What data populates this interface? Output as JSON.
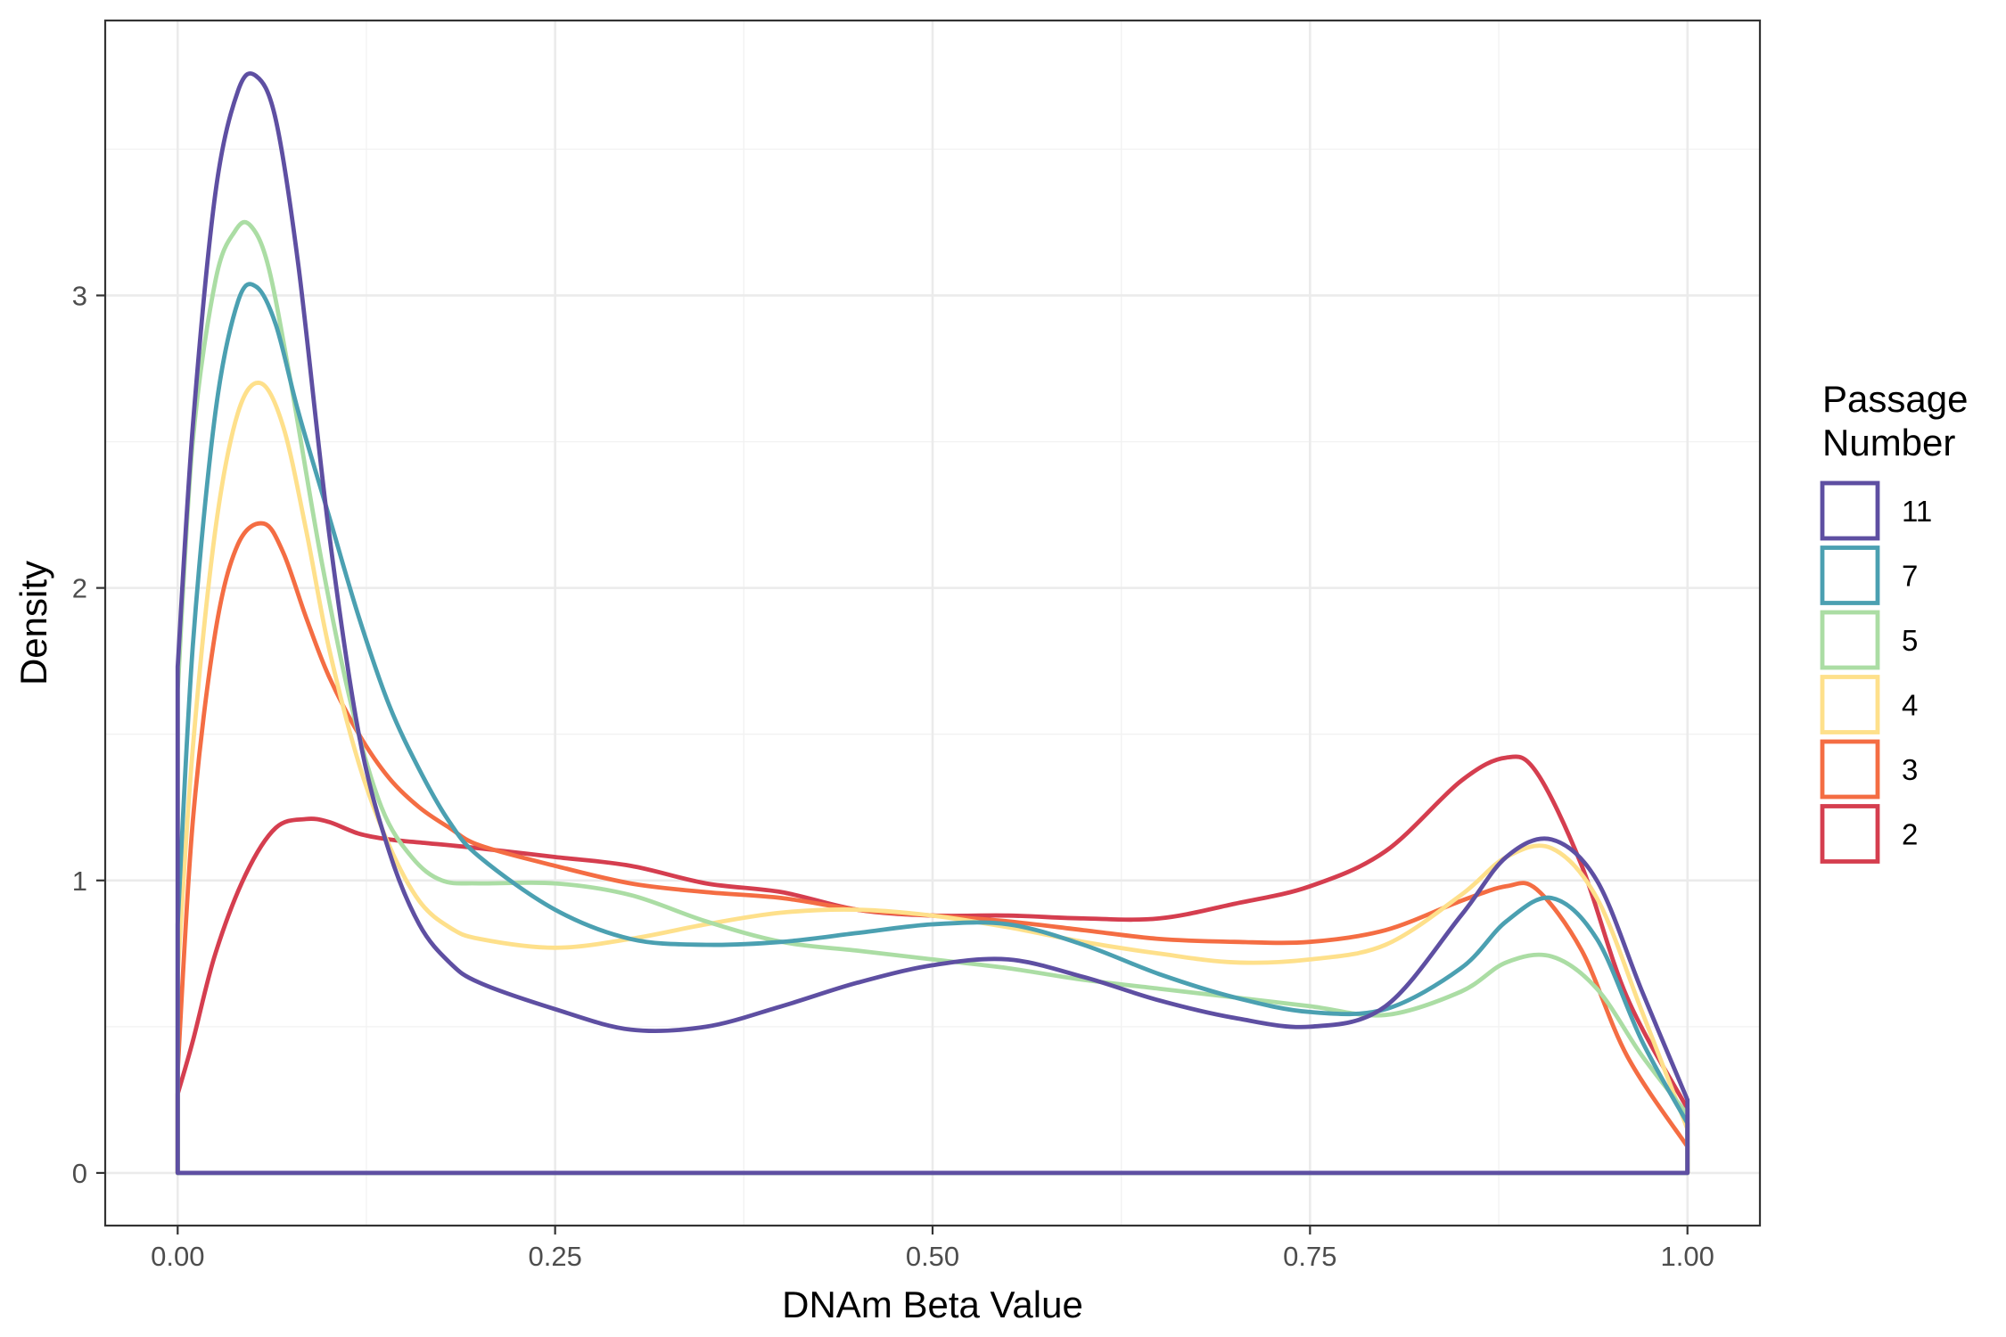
{
  "chart_data": {
    "type": "line",
    "subtype": "density",
    "title": "",
    "xlabel": "DNAm Beta Value",
    "ylabel": "Density",
    "xlim": [
      -0.048,
      1.048
    ],
    "ylim": [
      -0.18,
      3.94
    ],
    "x_ticks": [
      0,
      0.25,
      0.5,
      0.75,
      1
    ],
    "x_tick_labels": [
      "0.00",
      "0.25",
      "0.50",
      "0.75",
      "1.00"
    ],
    "y_ticks": [
      0,
      1,
      2,
      3
    ],
    "y_tick_labels": [
      "0",
      "1",
      "2",
      "3"
    ],
    "grid": true,
    "legend": {
      "title_lines": [
        "Passage",
        "Number"
      ],
      "position": "right"
    },
    "series": [
      {
        "name": "11",
        "color": "#5E4FA2",
        "x": [
          0,
          0.01,
          0.025,
          0.04,
          0.052,
          0.065,
          0.08,
          0.1,
          0.12,
          0.14,
          0.16,
          0.18,
          0.2,
          0.25,
          0.3,
          0.35,
          0.4,
          0.45,
          0.5,
          0.55,
          0.6,
          0.65,
          0.7,
          0.75,
          0.8,
          0.85,
          0.88,
          0.91,
          0.94,
          0.97,
          1.0
        ],
        "values": [
          1.73,
          2.55,
          3.35,
          3.7,
          3.75,
          3.6,
          3.1,
          2.2,
          1.5,
          1.1,
          0.85,
          0.72,
          0.65,
          0.56,
          0.49,
          0.5,
          0.57,
          0.65,
          0.71,
          0.73,
          0.67,
          0.59,
          0.53,
          0.5,
          0.57,
          0.88,
          1.08,
          1.14,
          1.0,
          0.62,
          0.25
        ]
      },
      {
        "name": "7",
        "color": "#4BA0B1",
        "x": [
          0,
          0.01,
          0.025,
          0.04,
          0.052,
          0.065,
          0.08,
          0.1,
          0.12,
          0.14,
          0.16,
          0.18,
          0.2,
          0.25,
          0.3,
          0.35,
          0.4,
          0.45,
          0.5,
          0.55,
          0.6,
          0.65,
          0.7,
          0.75,
          0.8,
          0.85,
          0.88,
          0.91,
          0.94,
          0.97,
          1.0
        ],
        "values": [
          0.85,
          1.8,
          2.6,
          2.98,
          3.03,
          2.9,
          2.6,
          2.25,
          1.9,
          1.6,
          1.38,
          1.2,
          1.08,
          0.9,
          0.8,
          0.78,
          0.79,
          0.82,
          0.85,
          0.85,
          0.78,
          0.68,
          0.6,
          0.55,
          0.56,
          0.7,
          0.86,
          0.94,
          0.8,
          0.45,
          0.17
        ]
      },
      {
        "name": "5",
        "color": "#ABDDA4",
        "x": [
          0,
          0.01,
          0.025,
          0.038,
          0.048,
          0.06,
          0.075,
          0.095,
          0.115,
          0.135,
          0.155,
          0.175,
          0.2,
          0.25,
          0.3,
          0.35,
          0.4,
          0.45,
          0.5,
          0.55,
          0.6,
          0.65,
          0.7,
          0.75,
          0.8,
          0.85,
          0.88,
          0.91,
          0.94,
          0.97,
          1.0
        ],
        "values": [
          1.65,
          2.5,
          3.05,
          3.22,
          3.24,
          3.1,
          2.7,
          2.1,
          1.6,
          1.25,
          1.08,
          1.0,
          0.99,
          0.99,
          0.95,
          0.86,
          0.79,
          0.76,
          0.73,
          0.7,
          0.66,
          0.63,
          0.6,
          0.57,
          0.54,
          0.62,
          0.72,
          0.74,
          0.63,
          0.4,
          0.2
        ]
      },
      {
        "name": "4",
        "color": "#FEE08B",
        "x": [
          0,
          0.01,
          0.025,
          0.04,
          0.055,
          0.07,
          0.085,
          0.1,
          0.12,
          0.14,
          0.16,
          0.18,
          0.2,
          0.25,
          0.3,
          0.35,
          0.4,
          0.45,
          0.5,
          0.55,
          0.6,
          0.65,
          0.7,
          0.75,
          0.8,
          0.85,
          0.88,
          0.91,
          0.94,
          0.97,
          1.0
        ],
        "values": [
          0.68,
          1.45,
          2.2,
          2.6,
          2.7,
          2.55,
          2.2,
          1.8,
          1.4,
          1.12,
          0.93,
          0.84,
          0.8,
          0.77,
          0.8,
          0.85,
          0.89,
          0.9,
          0.88,
          0.84,
          0.79,
          0.75,
          0.72,
          0.73,
          0.78,
          0.95,
          1.08,
          1.11,
          0.94,
          0.55,
          0.15
        ]
      },
      {
        "name": "3",
        "color": "#F46D43",
        "x": [
          0,
          0.01,
          0.025,
          0.04,
          0.057,
          0.07,
          0.085,
          0.1,
          0.12,
          0.14,
          0.16,
          0.18,
          0.2,
          0.25,
          0.3,
          0.35,
          0.4,
          0.45,
          0.5,
          0.55,
          0.6,
          0.65,
          0.7,
          0.75,
          0.8,
          0.85,
          0.88,
          0.9,
          0.93,
          0.96,
          1.0
        ],
        "values": [
          0.35,
          1.2,
          1.85,
          2.15,
          2.22,
          2.12,
          1.9,
          1.7,
          1.5,
          1.35,
          1.25,
          1.18,
          1.12,
          1.05,
          0.99,
          0.96,
          0.94,
          0.9,
          0.88,
          0.86,
          0.83,
          0.8,
          0.79,
          0.79,
          0.83,
          0.93,
          0.98,
          0.97,
          0.76,
          0.4,
          0.09
        ]
      },
      {
        "name": "2",
        "color": "#D53E4F",
        "x": [
          0,
          0.01,
          0.025,
          0.045,
          0.065,
          0.085,
          0.1,
          0.12,
          0.14,
          0.16,
          0.2,
          0.25,
          0.3,
          0.35,
          0.4,
          0.45,
          0.5,
          0.55,
          0.6,
          0.65,
          0.7,
          0.75,
          0.8,
          0.85,
          0.88,
          0.9,
          0.93,
          0.96,
          1.0
        ],
        "values": [
          0.27,
          0.45,
          0.75,
          1.02,
          1.18,
          1.21,
          1.2,
          1.16,
          1.14,
          1.13,
          1.11,
          1.08,
          1.05,
          0.99,
          0.96,
          0.9,
          0.88,
          0.88,
          0.87,
          0.87,
          0.92,
          0.98,
          1.1,
          1.34,
          1.42,
          1.37,
          1.05,
          0.6,
          0.22
        ]
      }
    ]
  }
}
